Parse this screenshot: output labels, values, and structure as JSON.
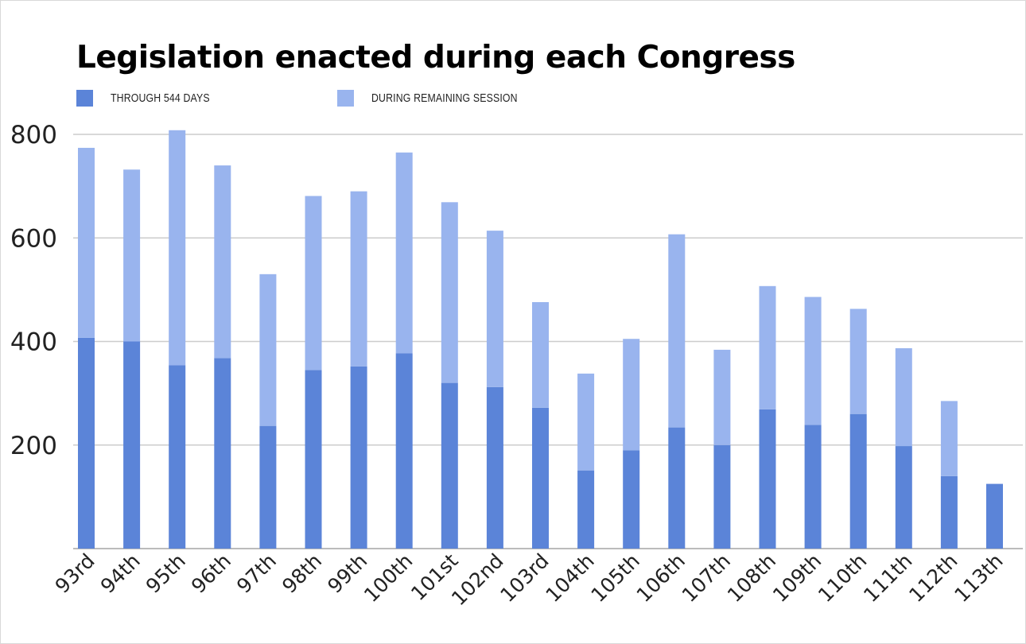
{
  "chart_data": {
    "type": "bar",
    "stacked": true,
    "title": "Legislation enacted during each Congress",
    "xlabel": "",
    "ylabel": "",
    "ylim": [
      0,
      800
    ],
    "yticks": [
      "200",
      "400",
      "600",
      "800"
    ],
    "grid": true,
    "legend_position": "top-left",
    "categories": [
      "93rd",
      "94th",
      "95th",
      "96th",
      "97th",
      "98th",
      "99th",
      "100th",
      "101st",
      "102nd",
      "103rd",
      "104th",
      "105th",
      "106th",
      "107th",
      "108th",
      "109th",
      "110th",
      "111th",
      "112th",
      "113th"
    ],
    "series": [
      {
        "name": "THROUGH 544 DAYS",
        "color": "#5b84d8",
        "values": [
          407,
          400,
          354,
          368,
          237,
          345,
          352,
          377,
          320,
          312,
          272,
          151,
          190,
          234,
          200,
          269,
          239,
          260,
          198,
          140,
          125
        ]
      },
      {
        "name": "DURING REMAINING SESSION",
        "color": "#99b4ee",
        "values": [
          367,
          332,
          454,
          372,
          293,
          336,
          338,
          388,
          349,
          302,
          204,
          187,
          215,
          373,
          184,
          238,
          247,
          203,
          189,
          145,
          0
        ]
      }
    ]
  }
}
